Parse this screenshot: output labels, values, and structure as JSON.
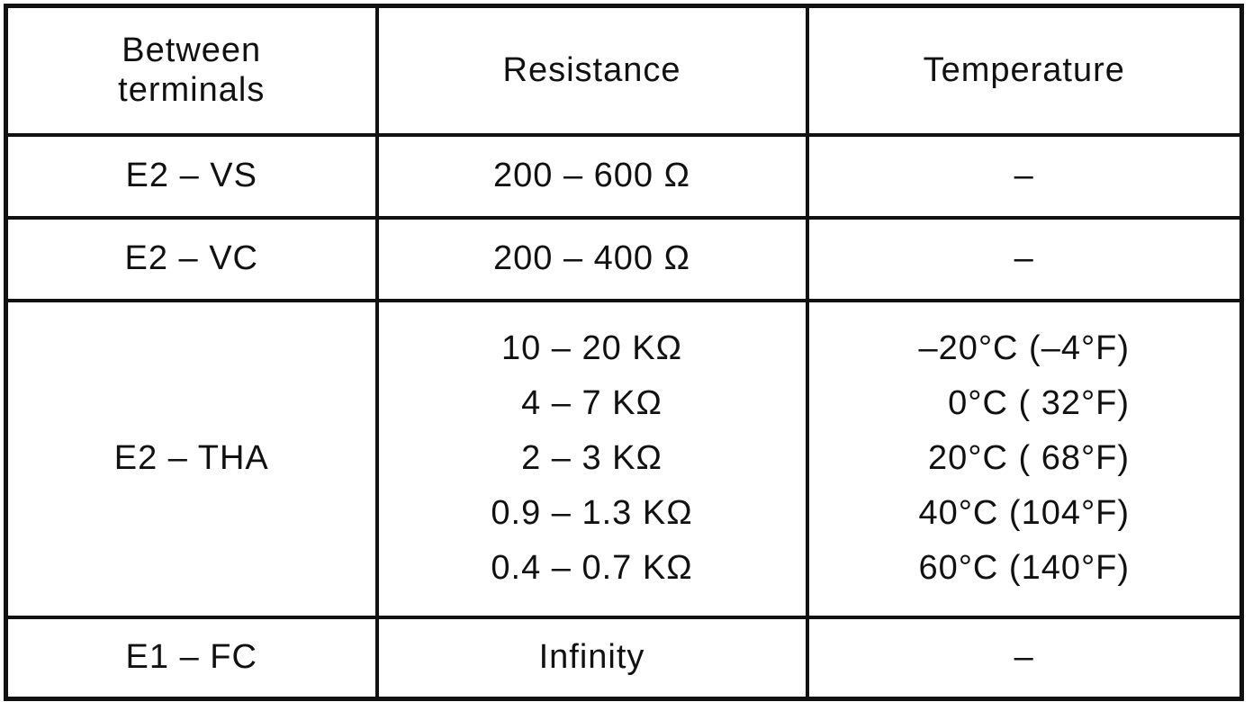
{
  "table": {
    "headers": {
      "terminals": "Between\nterminals",
      "resistance": "Resistance",
      "temperature": "Temperature"
    },
    "rows": [
      {
        "terminals": "E2 – VS",
        "resistance": [
          "200 – 600 Ω"
        ],
        "temperature": [
          "–"
        ]
      },
      {
        "terminals": "E2 – VC",
        "resistance": [
          "200 – 400 Ω"
        ],
        "temperature": [
          "–"
        ]
      },
      {
        "terminals": "E2 – THA",
        "resistance": [
          "10 – 20 KΩ",
          "4 – 7 KΩ",
          "2 – 3 KΩ",
          "0.9 – 1.3 KΩ",
          "0.4 – 0.7 KΩ"
        ],
        "temperature": [
          "–20°C (–4°F)",
          "0°C ( 32°F)",
          "20°C ( 68°F)",
          "40°C (104°F)",
          "60°C (140°F)"
        ]
      },
      {
        "terminals": "E1 – FC",
        "resistance": [
          "Infinity"
        ],
        "temperature": [
          "–"
        ]
      }
    ]
  }
}
